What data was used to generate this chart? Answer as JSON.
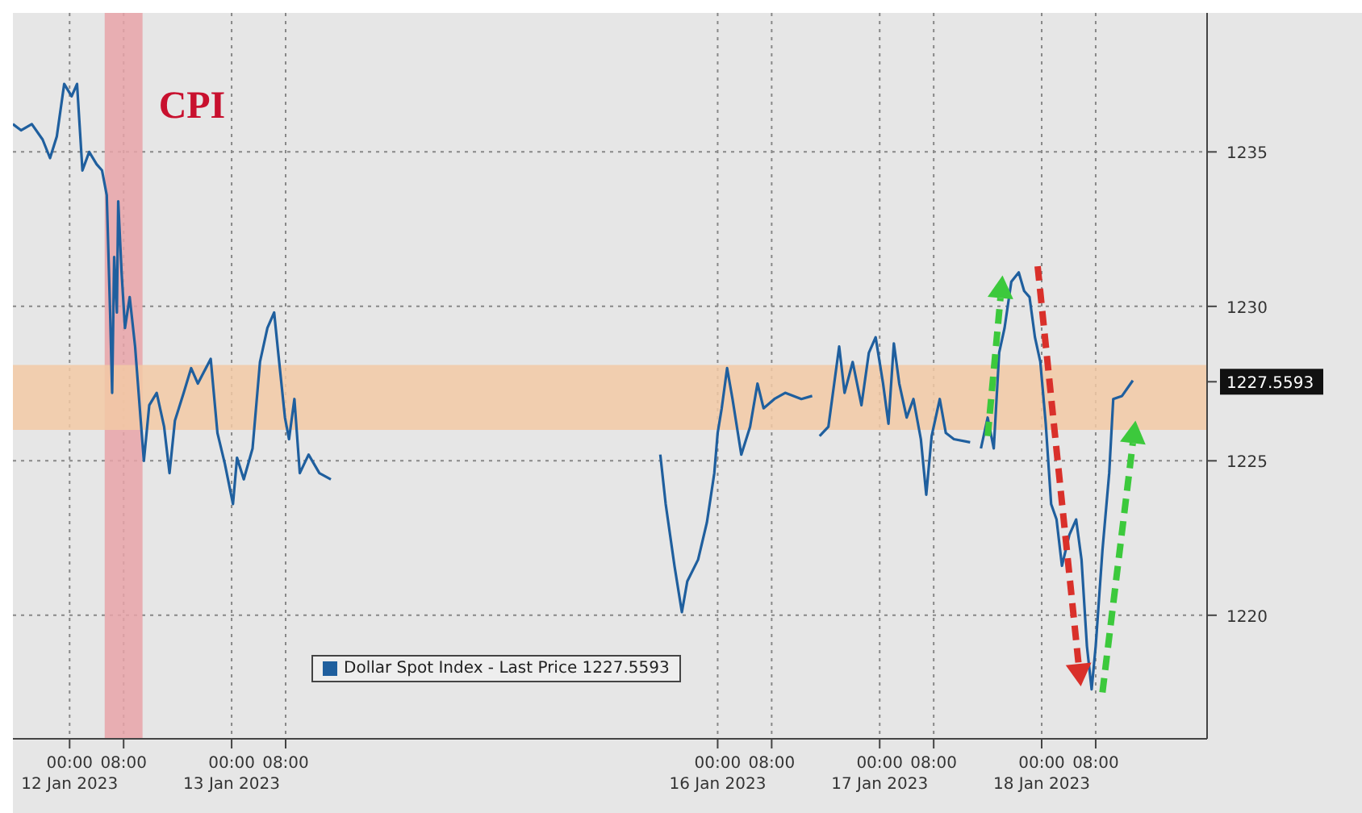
{
  "chart_data": {
    "type": "line",
    "x": [
      "2023-01-11T15:36",
      "2023-01-11T16:48",
      "2023-01-11T18:24",
      "2023-01-11T20:00",
      "2023-01-11T21:06",
      "2023-01-11T22:06",
      "2023-01-11T23:12",
      "2023-01-12T00:18",
      "2023-01-12T01:06",
      "2023-01-12T01:54",
      "2023-01-12T02:54",
      "2023-01-12T04:00",
      "2023-01-12T04:48",
      "2023-01-12T05:30",
      "2023-01-12T06:00",
      "2023-01-12T06:18",
      "2023-01-12T06:36",
      "2023-01-12T07:00",
      "2023-01-12T07:12",
      "2023-01-12T07:42",
      "2023-01-12T08:12",
      "2023-01-12T08:54",
      "2023-01-12T09:42",
      "2023-01-12T10:30",
      "2023-01-12T11:00",
      "2023-01-12T11:48",
      "2023-01-12T12:54",
      "2023-01-12T14:00",
      "2023-01-12T14:48",
      "2023-01-12T15:36",
      "2023-01-12T16:54",
      "2023-01-12T18:00",
      "2023-01-12T19:00",
      "2023-01-12T20:54",
      "2023-01-12T21:54",
      "2023-01-12T23:00",
      "2023-01-13T00:12",
      "2023-01-13T00:48",
      "2023-01-13T01:48",
      "2023-01-13T03:06",
      "2023-01-13T04:12",
      "2023-01-13T05:18",
      "2023-01-13T06:18",
      "2023-01-13T06:54",
      "2023-01-13T07:54",
      "2023-01-13T08:30",
      "2023-01-13T09:18",
      "2023-01-13T10:06",
      "2023-01-13T11:24",
      "2023-01-13T13:00",
      "2023-01-13T14:42",
      "2023-01-13T15:06",
      "2023-01-15T15:30",
      "2023-01-15T16:18",
      "2023-01-15T17:36",
      "2023-01-15T18:42",
      "2023-01-15T19:30",
      "2023-01-15T21:06",
      "2023-01-15T22:24",
      "2023-01-15T23:30",
      "2023-01-16T00:00",
      "2023-01-16T00:36",
      "2023-01-16T01:24",
      "2023-01-16T02:12",
      "2023-01-16T03:30",
      "2023-01-16T04:48",
      "2023-01-16T05:54",
      "2023-01-16T06:48",
      "2023-01-16T08:24",
      "2023-01-16T10:00",
      "2023-01-16T12:24",
      "2023-01-16T14:00",
      "2023-01-16T14:30",
      "2023-01-16T15:06",
      "2023-01-16T16:24",
      "2023-01-16T18:00",
      "2023-01-16T18:48",
      "2023-01-16T20:00",
      "2023-01-16T21:18",
      "2023-01-16T22:24",
      "2023-01-16T23:24",
      "2023-01-17T00:30",
      "2023-01-17T01:18",
      "2023-01-17T02:06",
      "2023-01-17T02:54",
      "2023-01-17T04:00",
      "2023-01-17T05:00",
      "2023-01-17T06:06",
      "2023-01-17T06:54",
      "2023-01-17T07:42",
      "2023-01-17T08:54",
      "2023-01-17T09:48",
      "2023-01-17T11:00",
      "2023-01-17T13:24",
      "2023-01-17T14:12",
      "2023-01-17T15:00",
      "2023-01-17T16:00",
      "2023-01-17T16:54",
      "2023-01-17T17:42",
      "2023-01-17T18:30",
      "2023-01-17T19:30",
      "2023-01-17T20:36",
      "2023-01-17T21:24",
      "2023-01-17T22:12",
      "2023-01-17T23:00",
      "2023-01-17T23:48",
      "2023-01-18T00:36",
      "2023-01-18T01:24",
      "2023-01-18T02:12",
      "2023-01-18T03:00",
      "2023-01-18T04:06",
      "2023-01-18T05:06",
      "2023-01-18T05:54",
      "2023-01-18T06:42",
      "2023-01-18T07:24",
      "2023-01-18T08:00",
      "2023-01-18T09:00",
      "2023-01-18T10:00",
      "2023-01-18T10:36",
      "2023-01-18T11:54",
      "2023-01-18T13:30"
    ],
    "series": [
      {
        "name": "Dollar Spot Index - Last Price 1227.5593",
        "color": "#1f5f9e",
        "values": [
          1235.9,
          1235.7,
          1235.9,
          1235.4,
          1234.8,
          1235.5,
          1237.2,
          1236.8,
          1237.2,
          1234.4,
          1235.0,
          1234.6,
          1234.4,
          1233.6,
          1229.8,
          1227.2,
          1231.6,
          1229.8,
          1233.4,
          1231.1,
          1229.3,
          1230.3,
          1228.7,
          1226.4,
          1225.0,
          1226.8,
          1227.2,
          1226.1,
          1224.6,
          1226.3,
          1227.2,
          1228.0,
          1227.5,
          1228.3,
          1225.9,
          1224.9,
          1223.6,
          1225.1,
          1224.4,
          1225.4,
          1228.2,
          1229.3,
          1229.8,
          1228.5,
          1226.4,
          1225.7,
          1227.0,
          1224.6,
          1225.2,
          1224.6,
          1224.4,
          null,
          1225.2,
          1223.6,
          1221.6,
          1220.1,
          1221.1,
          1221.8,
          1223.0,
          1224.6,
          1225.9,
          1226.7,
          1228.0,
          1227.0,
          1225.2,
          1226.1,
          1227.5,
          1226.7,
          1227.0,
          1227.2,
          1227.0,
          1227.1,
          null,
          1225.8,
          1226.1,
          1228.7,
          1227.2,
          1228.2,
          1226.8,
          1228.5,
          1229.0,
          1227.5,
          1226.2,
          1228.8,
          1227.5,
          1226.4,
          1227.0,
          1225.7,
          1223.9,
          1225.8,
          1227.0,
          1225.9,
          1225.7,
          1225.6,
          null,
          1225.4,
          1226.4,
          1225.4,
          1228.5,
          1229.3,
          1230.8,
          1231.1,
          1230.5,
          1230.3,
          1229.0,
          1228.2,
          1226.2,
          1223.6,
          1223.1,
          1221.6,
          1222.6,
          1223.1,
          1221.8,
          1219.0,
          1217.6,
          1219.0,
          1222.1,
          1224.6,
          1227.0,
          1227.1,
          1227.6
        ]
      }
    ],
    "xlim": [
      "2023-01-11T15:36",
      "2023-01-19T00:30"
    ],
    "xticks": [
      {
        "value": "2023-01-12T00:00",
        "label": "00:00\n12 Jan 2023"
      },
      {
        "value": "2023-01-12T08:00",
        "label": "08:00"
      },
      {
        "value": "2023-01-13T00:00",
        "label": "00:00\n13 Jan 2023"
      },
      {
        "value": "2023-01-13T08:00",
        "label": "08:00"
      },
      {
        "value": "2023-01-16T00:00",
        "label": "00:00\n16 Jan 2023"
      },
      {
        "value": "2023-01-16T08:00",
        "label": "08:00"
      },
      {
        "value": "2023-01-17T00:00",
        "label": "00:00\n17 Jan 2023"
      },
      {
        "value": "2023-01-17T08:00",
        "label": "08:00"
      },
      {
        "value": "2023-01-18T00:00",
        "label": "00:00\n18 Jan 2023"
      },
      {
        "value": "2023-01-18T08:00",
        "label": "08:00"
      }
    ],
    "ylim": [
      1216,
      1239.5
    ],
    "yticks": [
      1220,
      1225,
      {
        "value": 1227.5593,
        "label": "1227.5593"
      },
      1230,
      1235
    ],
    "grid": true,
    "legend": "bottom",
    "bands": [
      {
        "axis": "x",
        "from": "2023-01-12T05:12",
        "to": "2023-01-12T10:48",
        "label": "CPI",
        "color": "#e8a3a8"
      },
      {
        "axis": "y",
        "from": 1226,
        "to": 1228.1,
        "color": "#f2c9a4"
      }
    ]
  }
}
